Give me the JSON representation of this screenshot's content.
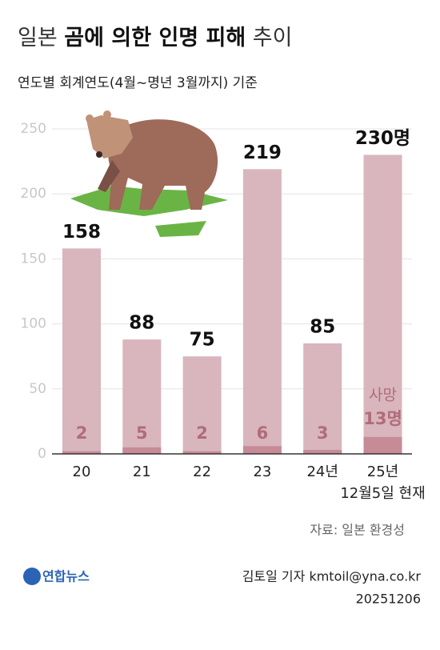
{
  "chart_data": {
    "type": "bar",
    "title": {
      "lead": "일본",
      "main": "곰에 의한 인명 피해",
      "tail": "추이"
    },
    "subtitle": "연도별 회계연도(4월~명년 3월까지) 기준",
    "categories": [
      "20",
      "21",
      "22",
      "23",
      "24년",
      "25년"
    ],
    "category_notes": [
      null,
      null,
      null,
      null,
      null,
      "12월5일 현재"
    ],
    "series": [
      {
        "color": "#d9b5bd",
        "values": [
          158,
          88,
          75,
          219,
          85,
          230
        ],
        "value_labels": [
          "158",
          "88",
          "75",
          "219",
          "85",
          "230명"
        ]
      },
      {
        "name": "사망",
        "color": "#c68b97",
        "values": [
          2,
          5,
          2,
          6,
          3,
          13
        ],
        "value_labels": [
          "2",
          "5",
          "2",
          "6",
          "3",
          "13명"
        ]
      }
    ],
    "ylim": [
      0,
      250
    ],
    "yticks": [
      0,
      50,
      100,
      150,
      200,
      250
    ],
    "grid": true,
    "source": "자료: 일본 환경성",
    "logo": "연합뉴스",
    "credit": "김토일 기자 kmtoil@yna.co.kr",
    "date": "20251206"
  }
}
